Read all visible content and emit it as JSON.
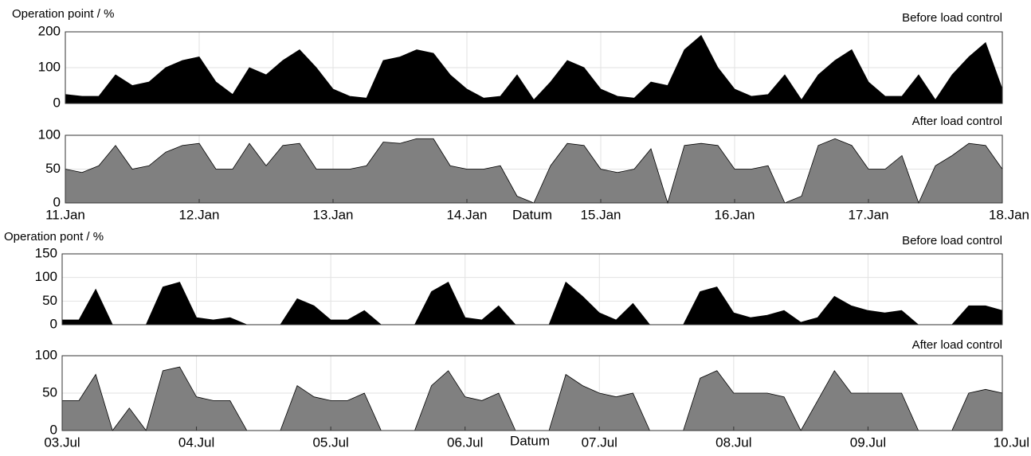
{
  "chart_data": [
    {
      "type": "area",
      "title": "Before load control",
      "ylabel": "Operation point / %",
      "color": "#000000",
      "grid": true,
      "x": [
        0,
        0.125,
        0.25,
        0.375,
        0.5,
        0.625,
        0.75,
        0.875,
        1,
        1.125,
        1.25,
        1.375,
        1.5,
        1.625,
        1.75,
        1.875,
        2,
        2.125,
        2.25,
        2.375,
        2.5,
        2.625,
        2.75,
        2.875,
        3,
        3.125,
        3.25,
        3.375,
        3.5,
        3.625,
        3.75,
        3.875,
        4,
        4.125,
        4.25,
        4.375,
        4.5,
        4.625,
        4.75,
        4.875,
        5,
        5.125,
        5.25,
        5.375,
        5.5,
        5.625,
        5.75,
        5.875,
        6,
        6.125,
        6.25,
        6.375,
        6.5,
        6.625,
        6.75,
        6.875,
        7
      ],
      "values": [
        25,
        20,
        20,
        80,
        50,
        60,
        100,
        120,
        130,
        60,
        25,
        100,
        80,
        120,
        150,
        100,
        40,
        20,
        15,
        120,
        130,
        150,
        140,
        80,
        40,
        15,
        20,
        80,
        10,
        60,
        120,
        100,
        40,
        20,
        15,
        60,
        50,
        150,
        190,
        100,
        40,
        20,
        25,
        80,
        10,
        80,
        120,
        150,
        60,
        20,
        20,
        80,
        10,
        80,
        130,
        170,
        40
      ],
      "xlim": [
        0,
        7
      ],
      "ylim": [
        0,
        200
      ],
      "yticks": [
        0,
        100,
        200
      ]
    },
    {
      "type": "area",
      "title": "After load control",
      "xlabel": "Datum",
      "color": "#808080",
      "grid": true,
      "x": [
        0,
        0.125,
        0.25,
        0.375,
        0.5,
        0.625,
        0.75,
        0.875,
        1,
        1.125,
        1.25,
        1.375,
        1.5,
        1.625,
        1.75,
        1.875,
        2,
        2.125,
        2.25,
        2.375,
        2.5,
        2.625,
        2.75,
        2.875,
        3,
        3.125,
        3.25,
        3.375,
        3.5,
        3.625,
        3.75,
        3.875,
        4,
        4.125,
        4.25,
        4.375,
        4.5,
        4.625,
        4.75,
        4.875,
        5,
        5.125,
        5.25,
        5.375,
        5.5,
        5.625,
        5.75,
        5.875,
        6,
        6.125,
        6.25,
        6.375,
        6.5,
        6.625,
        6.75,
        6.875,
        7
      ],
      "values": [
        50,
        45,
        55,
        85,
        50,
        55,
        75,
        85,
        88,
        50,
        50,
        88,
        55,
        85,
        88,
        50,
        50,
        50,
        55,
        90,
        88,
        95,
        95,
        55,
        50,
        50,
        55,
        10,
        0,
        55,
        88,
        85,
        50,
        45,
        50,
        80,
        0,
        85,
        88,
        85,
        50,
        50,
        55,
        0,
        10,
        85,
        95,
        85,
        50,
        50,
        70,
        0,
        55,
        70,
        88,
        85,
        50
      ],
      "xlim": [
        0,
        7
      ],
      "ylim": [
        0,
        100
      ],
      "yticks": [
        0,
        50,
        100
      ],
      "xticks": [
        {
          "value": 0,
          "label": "11.Jan"
        },
        {
          "value": 1,
          "label": "12.Jan"
        },
        {
          "value": 2,
          "label": "13.Jan"
        },
        {
          "value": 3,
          "label": "14.Jan"
        },
        {
          "value": 4,
          "label": "15.Jan"
        },
        {
          "value": 5,
          "label": "16.Jan"
        },
        {
          "value": 6,
          "label": "17.Jan"
        },
        {
          "value": 7,
          "label": "18.Jan"
        }
      ]
    },
    {
      "type": "area",
      "title": "Before load control",
      "ylabel": "Operation pont / %",
      "color": "#000000",
      "grid": true,
      "x": [
        0,
        0.125,
        0.25,
        0.375,
        0.5,
        0.625,
        0.75,
        0.875,
        1,
        1.125,
        1.25,
        1.375,
        1.5,
        1.625,
        1.75,
        1.875,
        2,
        2.125,
        2.25,
        2.375,
        2.5,
        2.625,
        2.75,
        2.875,
        3,
        3.125,
        3.25,
        3.375,
        3.5,
        3.625,
        3.75,
        3.875,
        4,
        4.125,
        4.25,
        4.375,
        4.5,
        4.625,
        4.75,
        4.875,
        5,
        5.125,
        5.25,
        5.375,
        5.5,
        5.625,
        5.75,
        5.875,
        6,
        6.125,
        6.25,
        6.375,
        6.5,
        6.625,
        6.75,
        6.875,
        7
      ],
      "values": [
        10,
        10,
        75,
        0,
        0,
        0,
        80,
        90,
        15,
        10,
        15,
        0,
        0,
        0,
        55,
        40,
        10,
        10,
        30,
        0,
        0,
        0,
        70,
        90,
        15,
        10,
        40,
        0,
        0,
        0,
        90,
        60,
        25,
        10,
        45,
        0,
        0,
        0,
        70,
        80,
        25,
        15,
        20,
        30,
        5,
        15,
        60,
        40,
        30,
        25,
        30,
        0,
        0,
        0,
        40,
        40,
        30
      ],
      "xlim": [
        0,
        7
      ],
      "ylim": [
        0,
        150
      ],
      "yticks": [
        0,
        50,
        100,
        150
      ]
    },
    {
      "type": "area",
      "title": "After load control",
      "xlabel": "Datum",
      "color": "#808080",
      "grid": true,
      "x": [
        0,
        0.125,
        0.25,
        0.375,
        0.5,
        0.625,
        0.75,
        0.875,
        1,
        1.125,
        1.25,
        1.375,
        1.5,
        1.625,
        1.75,
        1.875,
        2,
        2.125,
        2.25,
        2.375,
        2.5,
        2.625,
        2.75,
        2.875,
        3,
        3.125,
        3.25,
        3.375,
        3.5,
        3.625,
        3.75,
        3.875,
        4,
        4.125,
        4.25,
        4.375,
        4.5,
        4.625,
        4.75,
        4.875,
        5,
        5.125,
        5.25,
        5.375,
        5.5,
        5.625,
        5.75,
        5.875,
        6,
        6.125,
        6.25,
        6.375,
        6.5,
        6.625,
        6.75,
        6.875,
        7
      ],
      "values": [
        40,
        40,
        75,
        0,
        30,
        0,
        80,
        85,
        45,
        40,
        40,
        0,
        0,
        0,
        60,
        45,
        40,
        40,
        50,
        0,
        0,
        0,
        60,
        80,
        45,
        40,
        50,
        0,
        0,
        0,
        75,
        60,
        50,
        45,
        50,
        0,
        0,
        0,
        70,
        80,
        50,
        50,
        50,
        45,
        0,
        40,
        80,
        50,
        50,
        50,
        50,
        0,
        0,
        0,
        50,
        55,
        50
      ],
      "xlim": [
        0,
        7
      ],
      "ylim": [
        0,
        100
      ],
      "yticks": [
        0,
        50,
        100
      ],
      "xticks": [
        {
          "value": 0,
          "label": "03.Jul"
        },
        {
          "value": 1,
          "label": "04.Jul"
        },
        {
          "value": 2,
          "label": "05.Jul"
        },
        {
          "value": 3,
          "label": "06.Jul"
        },
        {
          "value": 4,
          "label": "07.Jul"
        },
        {
          "value": 5,
          "label": "08.Jul"
        },
        {
          "value": 6,
          "label": "09.Jul"
        },
        {
          "value": 7,
          "label": "10.Jul"
        }
      ]
    }
  ]
}
